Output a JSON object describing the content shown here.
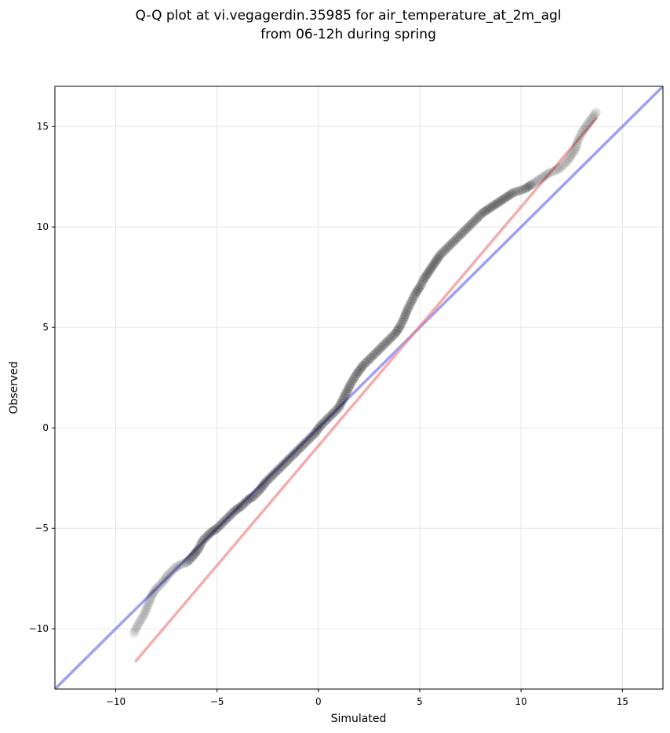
{
  "chart_data": {
    "type": "scatter",
    "title": "Q-Q plot at vi.vegagerdin.35985 for air_temperature_at_2m_agl",
    "subtitle": "from 06-12h during spring",
    "xlabel": "Simulated",
    "ylabel": "Observed",
    "xlim": [
      -13,
      17
    ],
    "ylim": [
      -13,
      17
    ],
    "xticks": [
      -10,
      -5,
      0,
      5,
      10,
      15
    ],
    "yticks": [
      -10,
      -5,
      0,
      5,
      10,
      15
    ],
    "xtick_labels": [
      "−10",
      "−5",
      "0",
      "5",
      "10",
      "15"
    ],
    "ytick_labels": [
      "−10",
      "−5",
      "0",
      "5",
      "10",
      "15"
    ],
    "grid": true,
    "points": {
      "x": [
        -9.1,
        -8.9,
        -8.6,
        -8.4,
        -8.2,
        -8.0,
        -7.7,
        -7.4,
        -7.1,
        -6.8,
        -6.5,
        -6.2,
        -5.9,
        -5.7,
        -5.5,
        -5.3,
        -5.0,
        -4.7,
        -4.4,
        -4.1,
        -3.8,
        -3.5,
        -3.2,
        -2.9,
        -2.6,
        -2.3,
        -2.0,
        -1.7,
        -1.4,
        -1.1,
        -0.8,
        -0.5,
        -0.2,
        0.1,
        0.4,
        0.7,
        1.0,
        1.3,
        1.6,
        1.9,
        2.2,
        2.5,
        2.8,
        3.0,
        3.2,
        3.4,
        3.6,
        3.8,
        4.0,
        4.2,
        4.4,
        4.6,
        4.8,
        5.0,
        5.2,
        5.4,
        5.6,
        5.8,
        6.0,
        6.3,
        6.6,
        6.9,
        7.2,
        7.5,
        7.8,
        8.1,
        8.4,
        8.7,
        9.0,
        9.3,
        9.6,
        9.9,
        10.2,
        10.5,
        10.8,
        11.1,
        11.4,
        11.7,
        12.0,
        12.3,
        12.5,
        12.7,
        12.8,
        13.0,
        13.7
      ],
      "y": [
        -10.2,
        -9.8,
        -9.3,
        -8.8,
        -8.3,
        -8.0,
        -7.7,
        -7.3,
        -7.0,
        -6.8,
        -6.7,
        -6.4,
        -6.0,
        -5.6,
        -5.4,
        -5.2,
        -5.0,
        -4.7,
        -4.4,
        -4.1,
        -3.9,
        -3.6,
        -3.4,
        -3.1,
        -2.7,
        -2.4,
        -2.1,
        -1.8,
        -1.5,
        -1.2,
        -0.9,
        -0.6,
        -0.3,
        0.1,
        0.4,
        0.7,
        1.0,
        1.6,
        2.2,
        2.7,
        3.1,
        3.4,
        3.7,
        3.9,
        4.1,
        4.3,
        4.5,
        4.7,
        5.0,
        5.4,
        5.9,
        6.3,
        6.7,
        7.0,
        7.4,
        7.7,
        8.0,
        8.3,
        8.6,
        8.9,
        9.2,
        9.5,
        9.8,
        10.1,
        10.4,
        10.7,
        10.9,
        11.1,
        11.3,
        11.5,
        11.7,
        11.8,
        11.9,
        12.1,
        12.3,
        12.5,
        12.7,
        12.8,
        13.0,
        13.3,
        13.6,
        13.9,
        14.3,
        14.7,
        15.7
      ]
    },
    "reference_lines": [
      {
        "name": "identity",
        "color": "#6b6bf0",
        "from": [
          -13,
          -13
        ],
        "to": [
          17,
          17
        ]
      },
      {
        "name": "fit",
        "color": "#f08080",
        "from": [
          -9.0,
          -11.6
        ],
        "to": [
          13.7,
          15.4
        ]
      }
    ],
    "colors": {
      "points": "#000000",
      "identity_line": "#6b6bf0",
      "fit_line": "#f08080",
      "grid": "#e6e6e6"
    }
  }
}
